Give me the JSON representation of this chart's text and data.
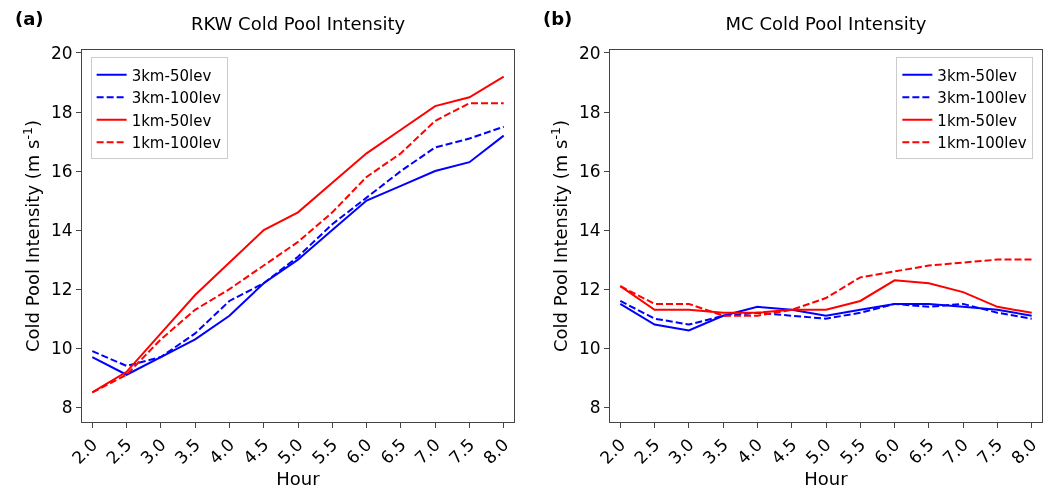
{
  "chart_data": [
    {
      "type": "line",
      "title": "RKW Cold Pool Intensity",
      "xlabel": "Hour",
      "ylabel": "Cold Pool Intensity (m s$^{-1}$)",
      "annotations": [
        "(a)"
      ],
      "categories": [
        "2.0",
        "2.5",
        "3.0",
        "3.5",
        "4.0",
        "4.5",
        "5.0",
        "5.5",
        "6.0",
        "6.5",
        "7.0",
        "7.5",
        "8.0"
      ],
      "series": [
        {
          "name": "3km-50lev",
          "color": "#0000ff",
          "line_style": "solid",
          "values": [
            9.7,
            9.1,
            9.7,
            10.3,
            11.1,
            12.2,
            13.0,
            14.0,
            15.0,
            15.5,
            16.0,
            16.3,
            17.2
          ]
        },
        {
          "name": "3km-100lev",
          "color": "#0000ff",
          "line_style": "dashed",
          "values": [
            9.9,
            9.4,
            9.7,
            10.5,
            11.6,
            12.2,
            13.1,
            14.2,
            15.1,
            16.0,
            16.8,
            17.1,
            17.5
          ]
        },
        {
          "name": "1km-50lev",
          "color": "#ff0000",
          "line_style": "solid",
          "values": [
            8.5,
            9.2,
            10.5,
            11.8,
            12.9,
            14.0,
            14.6,
            15.6,
            16.6,
            17.4,
            18.2,
            18.5,
            19.2
          ]
        },
        {
          "name": "1km-100lev",
          "color": "#ff0000",
          "line_style": "dashed",
          "values": [
            8.5,
            9.1,
            10.3,
            11.3,
            12.0,
            12.8,
            13.6,
            14.6,
            15.8,
            16.6,
            17.7,
            18.3,
            18.3
          ]
        }
      ],
      "ylim": [
        7.5,
        20.1
      ],
      "yticks": [
        8,
        10,
        12,
        14,
        16,
        18,
        20
      ],
      "grid": false,
      "legend": "top left",
      "marker": "none"
    },
    {
      "type": "line",
      "title": "MC Cold Pool Intensity",
      "xlabel": "Hour",
      "ylabel": "Cold Pool Intensity (m s$^{-1}$)",
      "annotations": [
        "(b)"
      ],
      "categories": [
        "2.0",
        "2.5",
        "3.0",
        "3.5",
        "4.0",
        "4.5",
        "5.0",
        "5.5",
        "6.0",
        "6.5",
        "7.0",
        "7.5",
        "8.0"
      ],
      "series": [
        {
          "name": "3km-50lev",
          "color": "#0000ff",
          "line_style": "solid",
          "values": [
            11.5,
            10.8,
            10.6,
            11.1,
            11.4,
            11.3,
            11.1,
            11.3,
            11.5,
            11.5,
            11.4,
            11.3,
            11.1
          ]
        },
        {
          "name": "3km-100lev",
          "color": "#0000ff",
          "line_style": "dashed",
          "values": [
            11.6,
            11.0,
            10.8,
            11.1,
            11.2,
            11.1,
            11.0,
            11.2,
            11.5,
            11.4,
            11.5,
            11.2,
            11.0
          ]
        },
        {
          "name": "1km-50lev",
          "color": "#ff0000",
          "line_style": "solid",
          "values": [
            12.1,
            11.3,
            11.3,
            11.2,
            11.2,
            11.3,
            11.3,
            11.6,
            12.3,
            12.2,
            11.9,
            11.4,
            11.2
          ]
        },
        {
          "name": "1km-100lev",
          "color": "#ff0000",
          "line_style": "dashed",
          "values": [
            12.1,
            11.5,
            11.5,
            11.1,
            11.1,
            11.3,
            11.7,
            12.4,
            12.6,
            12.8,
            12.9,
            13.0,
            13.0
          ]
        }
      ],
      "ylim": [
        7.5,
        20.1
      ],
      "yticks": [
        8,
        10,
        12,
        14,
        16,
        18,
        20
      ],
      "grid": false,
      "legend": "top right",
      "marker": "none"
    }
  ]
}
